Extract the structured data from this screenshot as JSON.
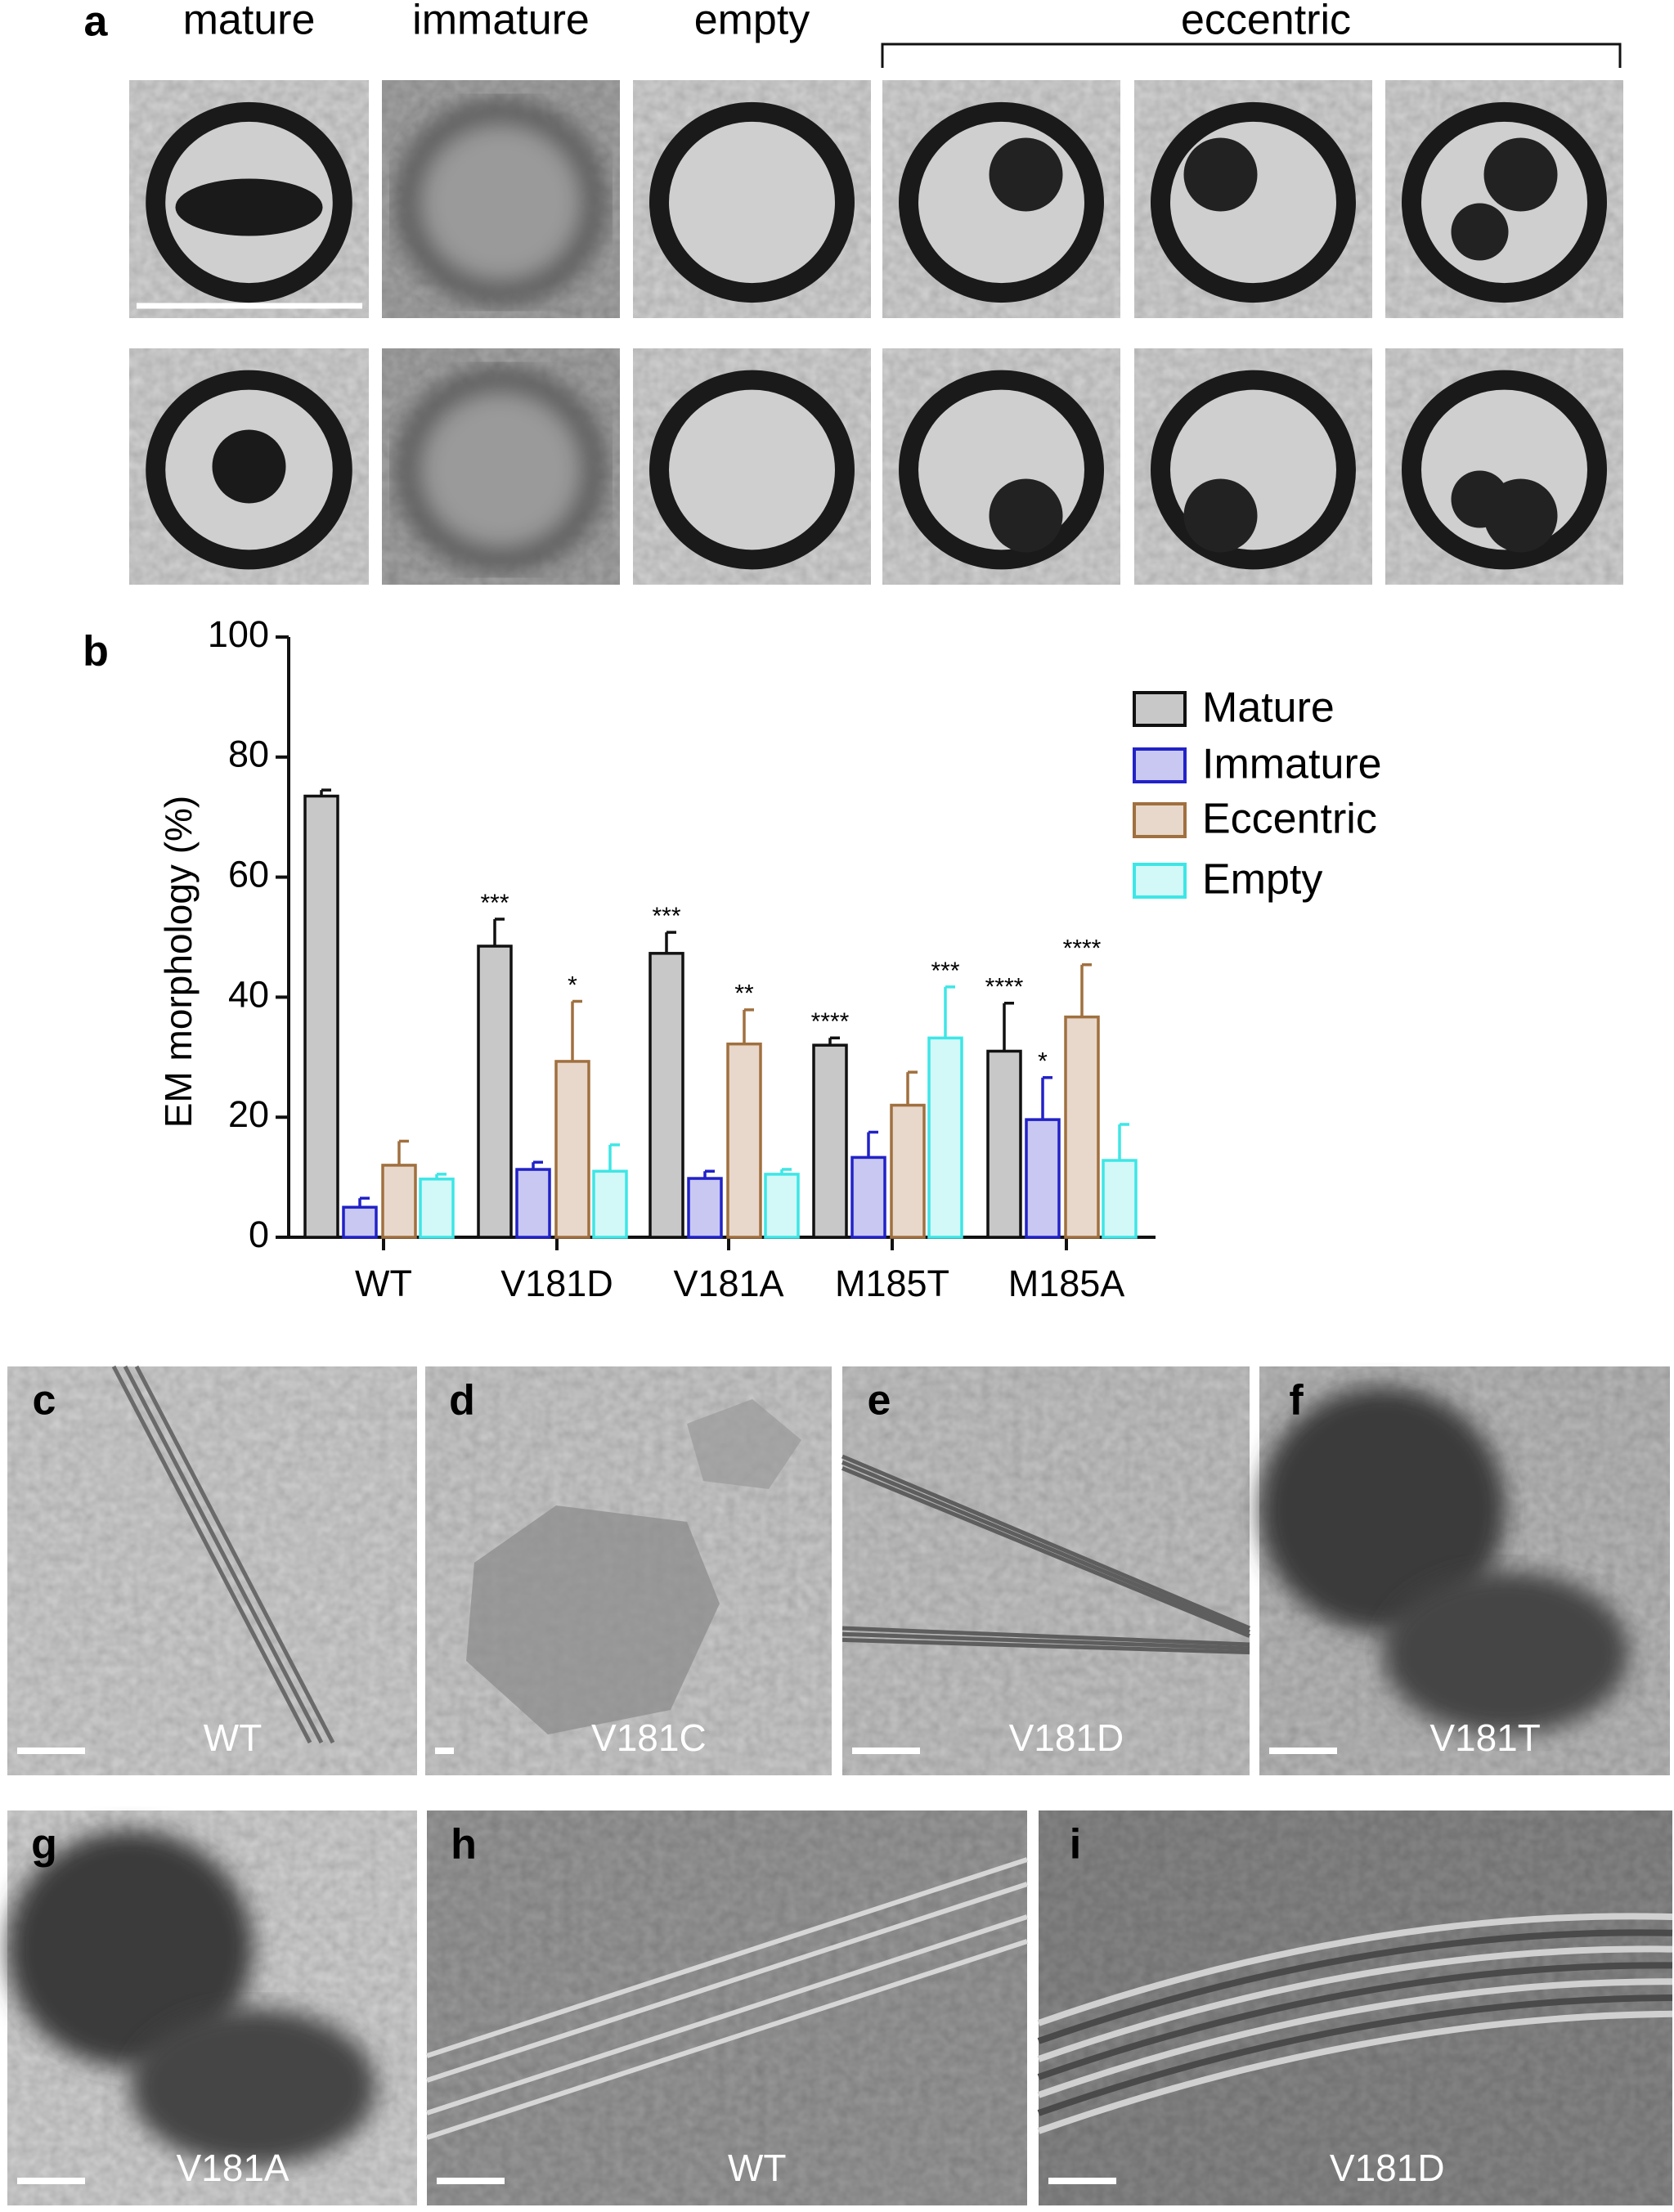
{
  "panel_a": {
    "label": "a",
    "columns": [
      "mature",
      "immature",
      "empty"
    ],
    "group_label": "eccentric"
  },
  "chart_data": {
    "type": "bar",
    "panel_label": "b",
    "y_label": "EM morphology (%)",
    "categories": [
      "WT",
      "V181D",
      "V181A",
      "M185T",
      "M185A"
    ],
    "ylim": [
      0,
      100
    ],
    "yticks": [
      0,
      20,
      40,
      60,
      80,
      100
    ],
    "legend": "upper right",
    "series": [
      {
        "name": "Mature",
        "color": "#111111",
        "fill": "#c8c8c8",
        "values": [
          73.5,
          48.5,
          47.3,
          32,
          31
        ],
        "errors": [
          1,
          4.5,
          3.5,
          1.2,
          8
        ],
        "annotations": [
          null,
          "***",
          "***",
          "****",
          "****"
        ]
      },
      {
        "name": "Immature",
        "color": "#2222c8",
        "fill": "#c8c8f2",
        "values": [
          5,
          11.3,
          9.8,
          13.3,
          19.6
        ],
        "errors": [
          1.5,
          1.2,
          1.2,
          4.2,
          7
        ],
        "annotations": [
          null,
          null,
          null,
          null,
          "*"
        ]
      },
      {
        "name": "Eccentric",
        "color": "#a0703f",
        "fill": "#e8d8cb",
        "values": [
          12,
          29.3,
          32.2,
          22,
          36.7
        ],
        "errors": [
          4,
          10,
          5.7,
          5.5,
          8.7
        ],
        "annotations": [
          null,
          "*",
          "**",
          null,
          "****"
        ]
      },
      {
        "name": "Empty",
        "color": "#3ee6e6",
        "fill": "#d2f8f8",
        "values": [
          9.7,
          11,
          10.5,
          33.2,
          12.8
        ],
        "errors": [
          0.8,
          4.4,
          0.8,
          8.5,
          6
        ],
        "annotations": [
          null,
          null,
          null,
          "***",
          null
        ]
      }
    ]
  },
  "micrographs": [
    {
      "label": "c",
      "caption": "WT"
    },
    {
      "label": "d",
      "caption": "V181C"
    },
    {
      "label": "e",
      "caption": "V181D"
    },
    {
      "label": "f",
      "caption": "V181T"
    },
    {
      "label": "g",
      "caption": "V181A"
    },
    {
      "label": "h",
      "caption": "WT"
    },
    {
      "label": "i",
      "caption": "V181D"
    }
  ]
}
